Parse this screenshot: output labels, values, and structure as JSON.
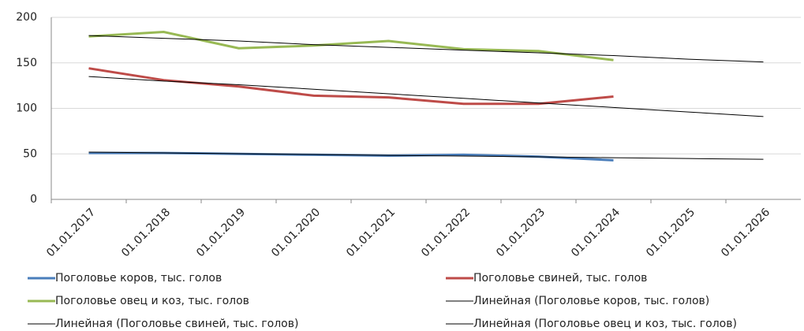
{
  "chart_data": {
    "type": "line",
    "categories": [
      "01.01.2017",
      "01.01.2018",
      "01.01.2019",
      "01.01.2020",
      "01.01.2021",
      "01.01.2022",
      "01.01.2023",
      "01.01.2024",
      "01.01.2025",
      "01.01.2026"
    ],
    "series": [
      {
        "name": "Поголовье коров, тыс. голов",
        "color": "#4a7ebb",
        "width": 3,
        "values": [
          51,
          51,
          50,
          49,
          48,
          49,
          47,
          43,
          null,
          null
        ]
      },
      {
        "name": "Поголовье свиней, тыс. голов",
        "color": "#be4b48",
        "width": 3,
        "values": [
          144,
          131,
          124,
          114,
          112,
          105,
          105,
          113,
          null,
          null
        ]
      },
      {
        "name": "Поголовье овец и коз, тыс. голов",
        "color": "#98b954",
        "width": 3,
        "values": [
          179,
          184,
          166,
          169,
          174,
          165,
          163,
          153,
          null,
          null
        ]
      },
      {
        "name": "Линейная (Поголовье коров, тыс. голов)",
        "color": "#000000",
        "width": 1,
        "values": [
          52,
          51.1,
          50.2,
          49.3,
          48.4,
          47.6,
          46.7,
          45.8,
          44.9,
          44
        ]
      },
      {
        "name": "Линейная (Поголовье свиней, тыс. голов)",
        "color": "#000000",
        "width": 1,
        "values": [
          135,
          130,
          126,
          121,
          116,
          111,
          106,
          101,
          96,
          91
        ]
      },
      {
        "name": "Линейная (Поголовье овец и коз, тыс. голов)",
        "color": "#000000",
        "width": 1,
        "values": [
          180,
          177,
          174,
          170,
          167,
          164,
          161,
          158,
          154,
          151
        ]
      }
    ],
    "ylim": [
      0,
      200
    ],
    "yticks": [
      0,
      50,
      100,
      150,
      200
    ],
    "grid": true
  }
}
